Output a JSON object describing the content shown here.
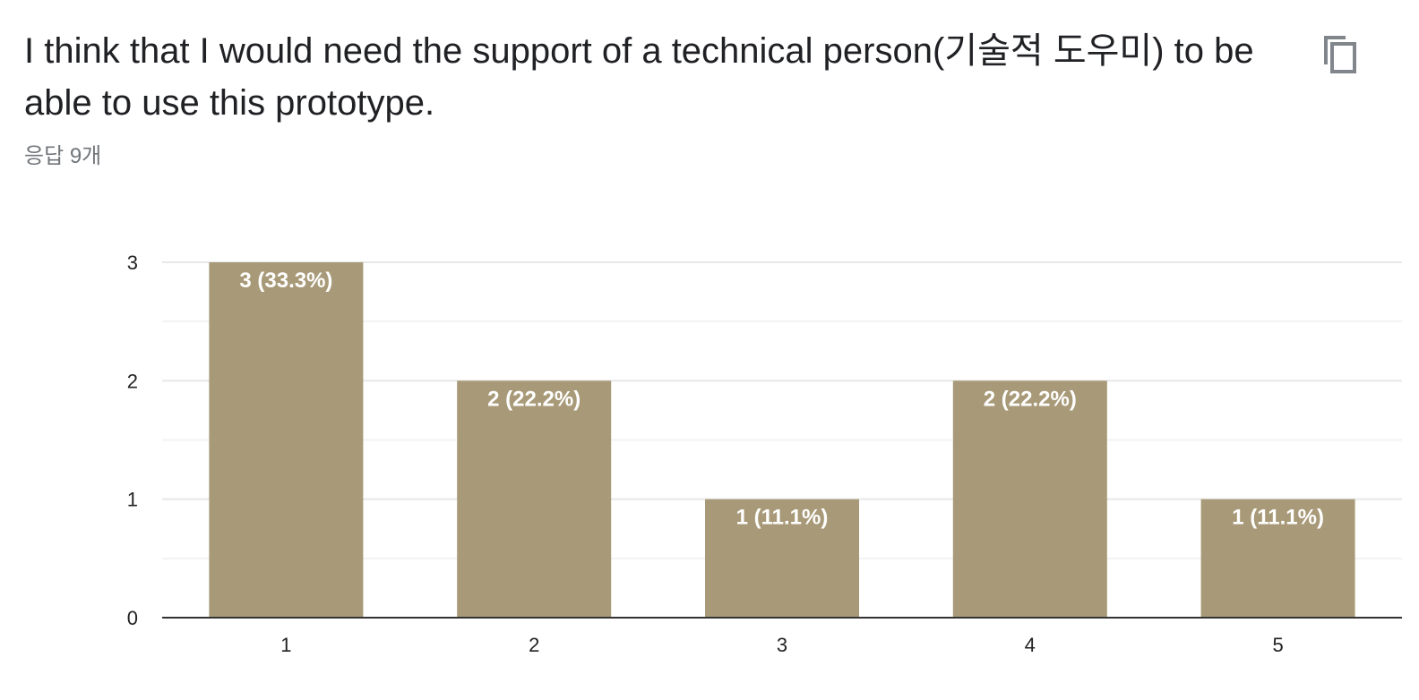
{
  "header": {
    "title": "I think that I would need the support of a technical person(기술적 도우미) to be able to use this prototype.",
    "responses": "응답 9개",
    "copy_icon": "copy-icon"
  },
  "colors": {
    "bar": "#a89a78",
    "grid": "#e8e8e8",
    "grid_minor": "#f3f3f3",
    "axis": "#333333"
  },
  "chart_data": {
    "type": "bar",
    "categories": [
      "1",
      "2",
      "3",
      "4",
      "5"
    ],
    "values": [
      3,
      2,
      1,
      2,
      1
    ],
    "data_labels": [
      "3 (33.3%)",
      "2 (22.2%)",
      "1 (11.1%)",
      "2 (22.2%)",
      "1 (11.1%)"
    ],
    "yticks": [
      "0",
      "1",
      "2",
      "3"
    ],
    "ylim": [
      0,
      3
    ],
    "grid": true,
    "legend": "none"
  }
}
